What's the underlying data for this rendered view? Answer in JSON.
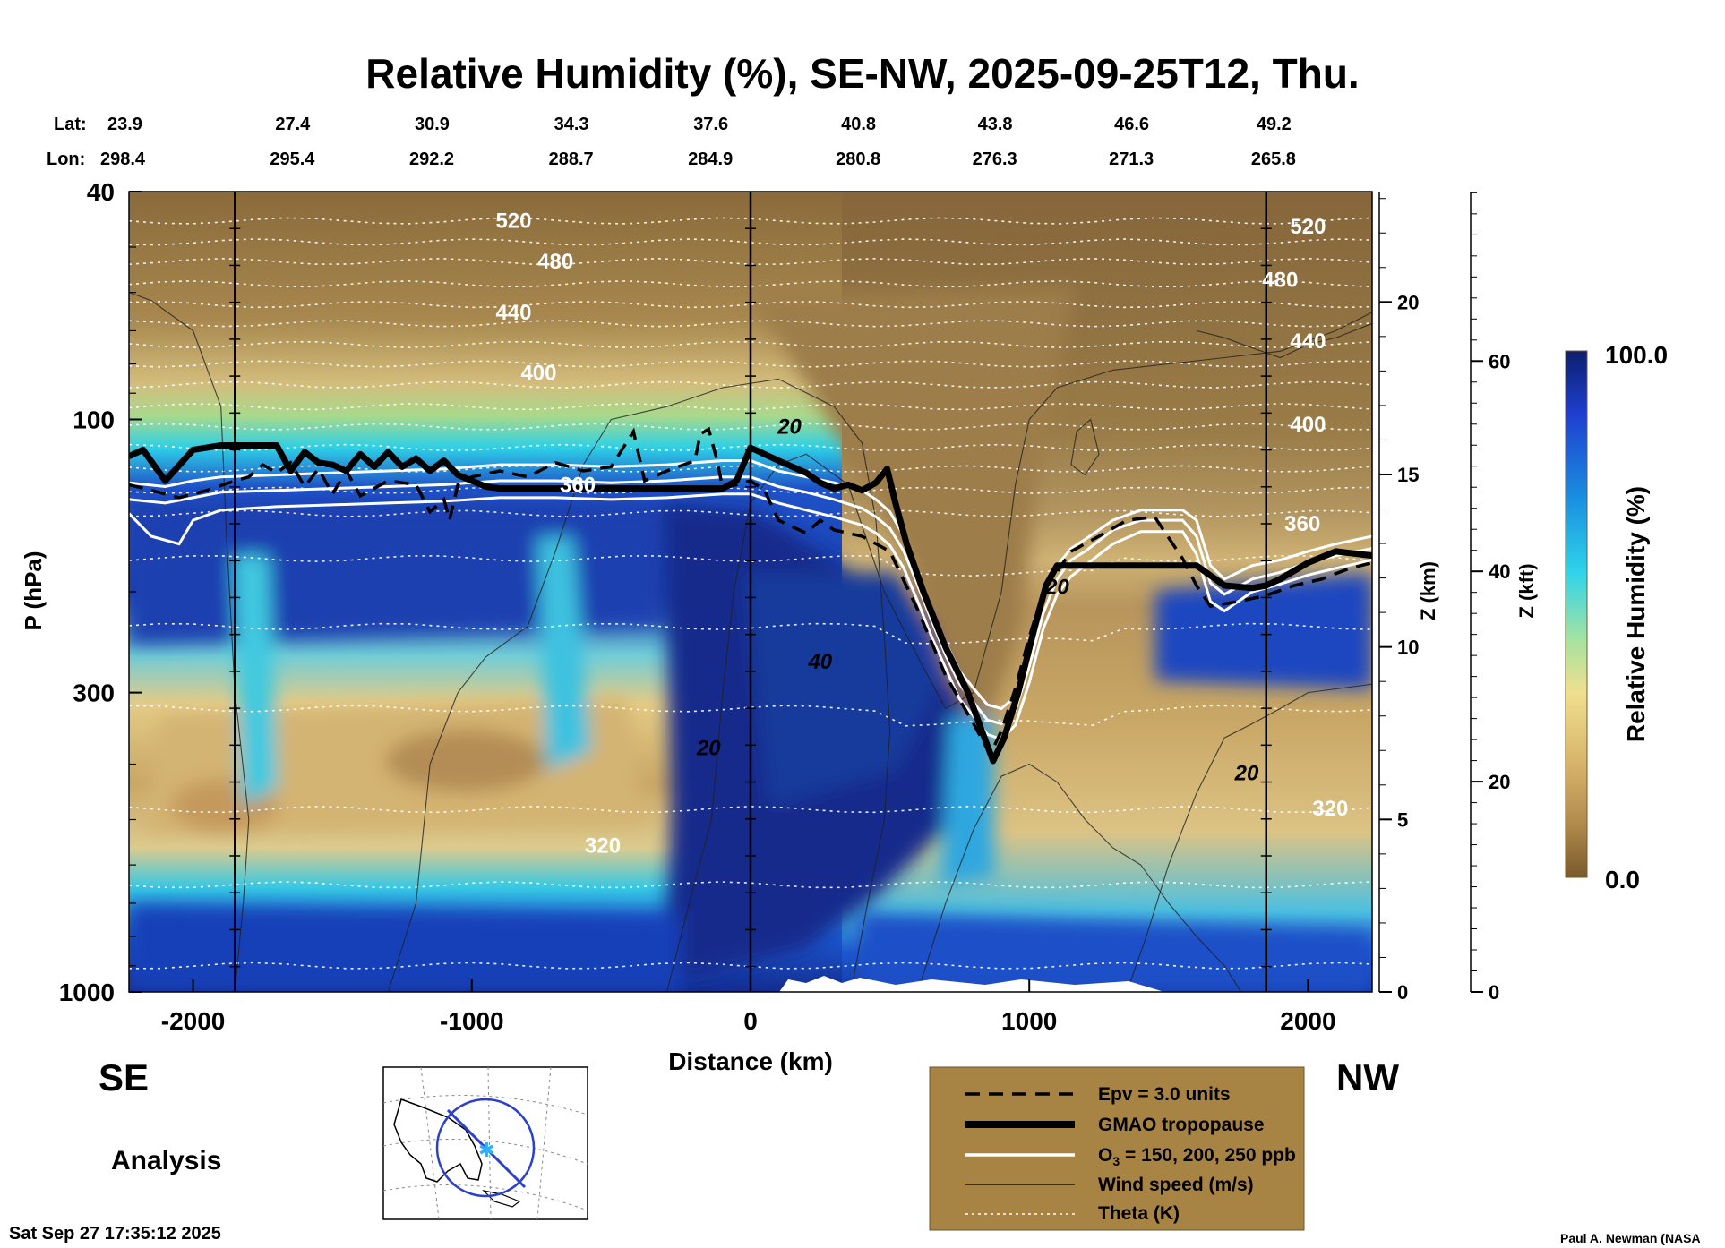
{
  "chart_data": {
    "type": "heatmap",
    "title": "Relative Humidity (%), SE-NW, 2025-09-25T12, Thu.",
    "xlabel": "Distance (km)",
    "ylabel": "P (hPa)",
    "ylabel_right_km": "Z (km)",
    "ylabel_right_kft": "Z (kft)",
    "xlim": [
      -2230,
      2230
    ],
    "ylim_hpa": [
      1000,
      40
    ],
    "y_scale": "log",
    "x_ticks": [
      -2000,
      -1000,
      0,
      1000,
      2000
    ],
    "x_tick_labels": [
      "-2000",
      "-1000",
      "0",
      "1000",
      "2000"
    ],
    "p_ticks": [
      1000,
      300,
      100,
      40
    ],
    "p_tick_labels": [
      "1000",
      "300",
      "100",
      "40"
    ],
    "km_ticks": [
      0,
      5,
      10,
      15,
      20
    ],
    "km_tick_labels": [
      "0",
      "5",
      "10",
      "15",
      "20"
    ],
    "kft_ticks": [
      0,
      20,
      40,
      60
    ],
    "kft_tick_labels": [
      "0",
      "20",
      "40",
      "60"
    ],
    "lat_label": "Lat:",
    "lon_label": "Lon:",
    "lat_values": [
      "23.9",
      "27.4",
      "30.9",
      "34.3",
      "37.6",
      "40.8",
      "43.8",
      "46.6",
      "49.2"
    ],
    "lon_values": [
      "298.4",
      "295.4",
      "292.2",
      "288.7",
      "284.9",
      "280.8",
      "276.3",
      "271.3",
      "265.8"
    ],
    "latlon_distances": [
      -2230,
      -1750,
      -1250,
      -750,
      -250,
      280,
      770,
      1260,
      1770
    ],
    "vertical_lines_km": [
      -1850,
      0,
      1850
    ],
    "colorbar": {
      "label": "Relative Humidity (%)",
      "max_label": "100.0",
      "min_label": "0.0",
      "range": [
        0,
        100
      ]
    },
    "theta_labels": [
      {
        "text": "520",
        "x": -850,
        "p": 45
      },
      {
        "text": "480",
        "x": -700,
        "p": 53
      },
      {
        "text": "440",
        "x": -850,
        "p": 65
      },
      {
        "text": "400",
        "x": -760,
        "p": 83
      },
      {
        "text": "360",
        "x": -620,
        "p": 130
      },
      {
        "text": "320",
        "x": -530,
        "p": 555
      },
      {
        "text": "520",
        "x": 2000,
        "p": 46
      },
      {
        "text": "480",
        "x": 1900,
        "p": 57
      },
      {
        "text": "440",
        "x": 2000,
        "p": 73
      },
      {
        "text": "400",
        "x": 2000,
        "p": 102
      },
      {
        "text": "360",
        "x": 1980,
        "p": 152
      },
      {
        "text": "320",
        "x": 2080,
        "p": 478
      }
    ],
    "wind_labels": [
      {
        "text": "20",
        "x": 140,
        "p": 103
      },
      {
        "text": "40",
        "x": 250,
        "p": 265
      },
      {
        "text": "20",
        "x": -150,
        "p": 375
      },
      {
        "text": "20",
        "x": 1100,
        "p": 196
      },
      {
        "text": "20",
        "x": 1780,
        "p": 415
      }
    ],
    "tropopause_p": [
      [
        -2230,
        116
      ],
      [
        -2180,
        113
      ],
      [
        -2100,
        128
      ],
      [
        -2000,
        113
      ],
      [
        -1900,
        111
      ],
      [
        -1800,
        111
      ],
      [
        -1700,
        111
      ],
      [
        -1650,
        123
      ],
      [
        -1600,
        114
      ],
      [
        -1550,
        119
      ],
      [
        -1500,
        120
      ],
      [
        -1450,
        123
      ],
      [
        -1400,
        115
      ],
      [
        -1350,
        121
      ],
      [
        -1300,
        114
      ],
      [
        -1250,
        121
      ],
      [
        -1200,
        117
      ],
      [
        -1150,
        123
      ],
      [
        -1100,
        118
      ],
      [
        -1050,
        125
      ],
      [
        -1000,
        128
      ],
      [
        -950,
        131
      ],
      [
        -900,
        132
      ],
      [
        -800,
        132
      ],
      [
        -700,
        132
      ],
      [
        -600,
        132
      ],
      [
        -500,
        132
      ],
      [
        -400,
        132
      ],
      [
        -300,
        132
      ],
      [
        -200,
        132
      ],
      [
        -100,
        132
      ],
      [
        -50,
        128
      ],
      [
        0,
        112
      ],
      [
        100,
        118
      ],
      [
        200,
        124
      ],
      [
        250,
        129
      ],
      [
        300,
        132
      ],
      [
        350,
        130
      ],
      [
        400,
        133
      ],
      [
        450,
        129
      ],
      [
        490,
        122
      ],
      [
        520,
        140
      ],
      [
        560,
        165
      ],
      [
        620,
        200
      ],
      [
        700,
        250
      ],
      [
        780,
        300
      ],
      [
        830,
        350
      ],
      [
        870,
        395
      ],
      [
        910,
        360
      ],
      [
        960,
        300
      ],
      [
        1020,
        230
      ],
      [
        1060,
        195
      ],
      [
        1100,
        180
      ],
      [
        1200,
        180
      ],
      [
        1300,
        180
      ],
      [
        1400,
        180
      ],
      [
        1500,
        180
      ],
      [
        1600,
        180
      ],
      [
        1700,
        195
      ],
      [
        1800,
        197
      ],
      [
        1850,
        195
      ],
      [
        1900,
        190
      ],
      [
        2000,
        178
      ],
      [
        2100,
        170
      ],
      [
        2230,
        173
      ]
    ],
    "epv_p": [
      [
        -2230,
        130
      ],
      [
        -2150,
        133
      ],
      [
        -2050,
        137
      ],
      [
        -1950,
        133
      ],
      [
        -1850,
        128
      ],
      [
        -1800,
        126
      ],
      [
        -1750,
        120
      ],
      [
        -1700,
        124
      ],
      [
        -1650,
        119
      ],
      [
        -1600,
        131
      ],
      [
        -1550,
        122
      ],
      [
        -1500,
        135
      ],
      [
        -1450,
        123
      ],
      [
        -1400,
        136
      ],
      [
        -1300,
        128
      ],
      [
        -1200,
        130
      ],
      [
        -1150,
        145
      ],
      [
        -1100,
        138
      ],
      [
        -1080,
        150
      ],
      [
        -1050,
        130
      ],
      [
        -1000,
        126
      ],
      [
        -900,
        123
      ],
      [
        -800,
        126
      ],
      [
        -700,
        119
      ],
      [
        -600,
        123
      ],
      [
        -500,
        121
      ],
      [
        -420,
        105
      ],
      [
        -380,
        128
      ],
      [
        -300,
        123
      ],
      [
        -200,
        118
      ],
      [
        -180,
        106
      ],
      [
        -150,
        104
      ],
      [
        -120,
        118
      ],
      [
        -100,
        132
      ],
      [
        -50,
        130
      ],
      [
        0,
        128
      ],
      [
        50,
        133
      ],
      [
        100,
        150
      ],
      [
        200,
        158
      ],
      [
        250,
        150
      ],
      [
        300,
        156
      ],
      [
        400,
        160
      ],
      [
        500,
        170
      ],
      [
        600,
        215
      ],
      [
        700,
        280
      ],
      [
        800,
        340
      ],
      [
        860,
        385
      ],
      [
        900,
        350
      ],
      [
        950,
        295
      ],
      [
        1000,
        240
      ],
      [
        1050,
        200
      ],
      [
        1150,
        170
      ],
      [
        1250,
        160
      ],
      [
        1350,
        150
      ],
      [
        1450,
        148
      ],
      [
        1550,
        175
      ],
      [
        1600,
        195
      ],
      [
        1650,
        212
      ],
      [
        1750,
        208
      ],
      [
        1850,
        203
      ],
      [
        1950,
        195
      ],
      [
        2050,
        190
      ],
      [
        2150,
        182
      ],
      [
        2230,
        178
      ]
    ],
    "ozone_contours_p": [
      [
        [
          -2230,
          129
        ],
        [
          -2100,
          131
        ],
        [
          -2000,
          128
        ],
        [
          -1900,
          126
        ],
        [
          -1700,
          125
        ],
        [
          -1500,
          124
        ],
        [
          -1300,
          123
        ],
        [
          -1100,
          122
        ],
        [
          -900,
          120
        ],
        [
          -700,
          120
        ],
        [
          -500,
          121
        ],
        [
          -300,
          120
        ],
        [
          -100,
          118
        ],
        [
          0,
          118
        ],
        [
          100,
          123
        ],
        [
          200,
          126
        ],
        [
          300,
          129
        ],
        [
          400,
          133
        ],
        [
          450,
          138
        ],
        [
          500,
          145
        ],
        [
          550,
          160
        ],
        [
          600,
          185
        ],
        [
          650,
          215
        ],
        [
          700,
          245
        ],
        [
          750,
          275
        ],
        [
          800,
          295
        ],
        [
          850,
          315
        ],
        [
          900,
          320
        ],
        [
          950,
          305
        ],
        [
          1000,
          255
        ],
        [
          1050,
          205
        ],
        [
          1100,
          180
        ],
        [
          1150,
          168
        ],
        [
          1200,
          162
        ],
        [
          1300,
          150
        ],
        [
          1400,
          144
        ],
        [
          1550,
          144
        ],
        [
          1600,
          150
        ],
        [
          1650,
          180
        ],
        [
          1700,
          190
        ],
        [
          1800,
          180
        ],
        [
          1900,
          176
        ],
        [
          2000,
          170
        ],
        [
          2100,
          165
        ],
        [
          2230,
          160
        ]
      ],
      [
        [
          -2230,
          138
        ],
        [
          -2100,
          140
        ],
        [
          -2000,
          137
        ],
        [
          -1900,
          134
        ],
        [
          -1700,
          133
        ],
        [
          -1500,
          132
        ],
        [
          -1300,
          131
        ],
        [
          -1100,
          130
        ],
        [
          -900,
          128
        ],
        [
          -700,
          128
        ],
        [
          -500,
          129
        ],
        [
          -300,
          128
        ],
        [
          -100,
          126
        ],
        [
          0,
          126
        ],
        [
          100,
          131
        ],
        [
          200,
          134
        ],
        [
          300,
          138
        ],
        [
          400,
          143
        ],
        [
          450,
          148
        ],
        [
          500,
          155
        ],
        [
          550,
          170
        ],
        [
          600,
          195
        ],
        [
          650,
          225
        ],
        [
          700,
          258
        ],
        [
          750,
          290
        ],
        [
          800,
          312
        ],
        [
          850,
          335
        ],
        [
          900,
          340
        ],
        [
          950,
          322
        ],
        [
          1000,
          270
        ],
        [
          1050,
          218
        ],
        [
          1100,
          190
        ],
        [
          1150,
          176
        ],
        [
          1200,
          170
        ],
        [
          1300,
          156
        ],
        [
          1400,
          150
        ],
        [
          1550,
          150
        ],
        [
          1600,
          160
        ],
        [
          1650,
          193
        ],
        [
          1700,
          202
        ],
        [
          1800,
          190
        ],
        [
          1900,
          185
        ],
        [
          2000,
          178
        ],
        [
          2100,
          173
        ],
        [
          2230,
          168
        ]
      ],
      [
        [
          -2230,
          146
        ],
        [
          -2150,
          160
        ],
        [
          -2050,
          165
        ],
        [
          -2000,
          150
        ],
        [
          -1900,
          144
        ],
        [
          -1700,
          142
        ],
        [
          -1500,
          141
        ],
        [
          -1300,
          140
        ],
        [
          -1100,
          139
        ],
        [
          -900,
          137
        ],
        [
          -700,
          137
        ],
        [
          -500,
          138
        ],
        [
          -300,
          137
        ],
        [
          -100,
          135
        ],
        [
          0,
          135
        ],
        [
          100,
          140
        ],
        [
          200,
          144
        ],
        [
          300,
          148
        ],
        [
          400,
          153
        ],
        [
          450,
          158
        ],
        [
          500,
          166
        ],
        [
          550,
          182
        ],
        [
          600,
          208
        ],
        [
          650,
          240
        ],
        [
          700,
          272
        ],
        [
          750,
          308
        ],
        [
          800,
          330
        ],
        [
          850,
          355
        ],
        [
          900,
          362
        ],
        [
          950,
          342
        ],
        [
          1000,
          288
        ],
        [
          1050,
          232
        ],
        [
          1100,
          202
        ],
        [
          1150,
          188
        ],
        [
          1200,
          180
        ],
        [
          1300,
          165
        ],
        [
          1400,
          157
        ],
        [
          1550,
          157
        ],
        [
          1600,
          172
        ],
        [
          1650,
          208
        ],
        [
          1700,
          216
        ],
        [
          1800,
          200
        ],
        [
          1900,
          194
        ],
        [
          2000,
          187
        ],
        [
          2100,
          182
        ],
        [
          2230,
          176
        ]
      ]
    ]
  }
}
